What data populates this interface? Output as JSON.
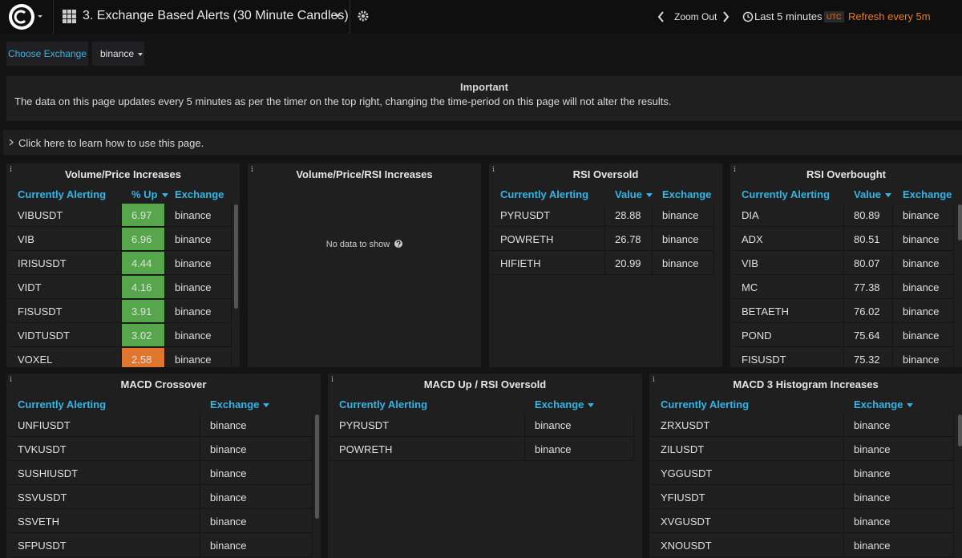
{
  "header": {
    "title": "3. Exchange Based Alerts (30 Minute Candles)",
    "zoom_out": "Zoom Out",
    "time_range": "Last 5 minutes",
    "timezone": "UTC",
    "refresh": "Refresh every 5m"
  },
  "variables": {
    "label": "Choose Exchange",
    "value": "binance"
  },
  "notice": {
    "title": "Important",
    "text": "The data on this page updates every 5 minutes as per the timer on the top right, changing the time-period on this page will not alter the results."
  },
  "help_row": "Click here to learn how to use this page.",
  "panels": [
    {
      "title": "Volume/Price Increases",
      "columns": [
        "Currently Alerting",
        "% Up",
        "Exchange"
      ],
      "sort_column": 1,
      "rows": [
        [
          "VIBUSDT",
          "6.97",
          "binance"
        ],
        [
          "VIB",
          "6.96",
          "binance"
        ],
        [
          "IRISUSDT",
          "4.44",
          "binance"
        ],
        [
          "VIDT",
          "4.16",
          "binance"
        ],
        [
          "FISUSDT",
          "3.91",
          "binance"
        ],
        [
          "VIDTUSDT",
          "3.02",
          "binance"
        ],
        [
          "VOXEL",
          "2.58",
          "binance"
        ]
      ],
      "cell_colors": [
        "#56a64b",
        "#56a64b",
        "#56a64b",
        "#56a64b",
        "#56a64b",
        "#56a64b",
        "#e0752d"
      ]
    },
    {
      "title": "Volume/Price/RSI Increases",
      "empty": "No data to show"
    },
    {
      "title": "RSI Oversold",
      "columns": [
        "Currently Alerting",
        "Value",
        "Exchange"
      ],
      "sort_column": 1,
      "rows": [
        [
          "PYRUSDT",
          "28.88",
          "binance"
        ],
        [
          "POWRETH",
          "26.78",
          "binance"
        ],
        [
          "HIFIETH",
          "20.99",
          "binance"
        ]
      ]
    },
    {
      "title": "RSI Overbought",
      "columns": [
        "Currently Alerting",
        "Value",
        "Exchange"
      ],
      "sort_column": 1,
      "rows": [
        [
          "DIA",
          "80.89",
          "binance"
        ],
        [
          "ADX",
          "80.51",
          "binance"
        ],
        [
          "VIB",
          "80.07",
          "binance"
        ],
        [
          "MC",
          "77.38",
          "binance"
        ],
        [
          "BETAETH",
          "76.02",
          "binance"
        ],
        [
          "POND",
          "75.64",
          "binance"
        ],
        [
          "FISUSDT",
          "75.32",
          "binance"
        ]
      ]
    },
    {
      "title": "MACD Crossover",
      "columns": [
        "Currently Alerting",
        "Exchange"
      ],
      "sort_column": 1,
      "rows": [
        [
          "UNFIUSDT",
          "binance"
        ],
        [
          "TVKUSDT",
          "binance"
        ],
        [
          "SUSHIUSDT",
          "binance"
        ],
        [
          "SSVUSDT",
          "binance"
        ],
        [
          "SSVETH",
          "binance"
        ],
        [
          "SFPUSDT",
          "binance"
        ]
      ]
    },
    {
      "title": "MACD Up / RSI Oversold",
      "columns": [
        "Currently Alerting",
        "Exchange"
      ],
      "sort_column": 1,
      "rows": [
        [
          "PYRUSDT",
          "binance"
        ],
        [
          "POWRETH",
          "binance"
        ]
      ]
    },
    {
      "title": "MACD 3 Histogram Increases",
      "columns": [
        "Currently Alerting",
        "Exchange"
      ],
      "sort_column": 1,
      "rows": [
        [
          "ZRXUSDT",
          "binance"
        ],
        [
          "ZILUSDT",
          "binance"
        ],
        [
          "YGGUSDT",
          "binance"
        ],
        [
          "YFIUSDT",
          "binance"
        ],
        [
          "XVGUSDT",
          "binance"
        ],
        [
          "XNOUSDT",
          "binance"
        ]
      ]
    }
  ]
}
